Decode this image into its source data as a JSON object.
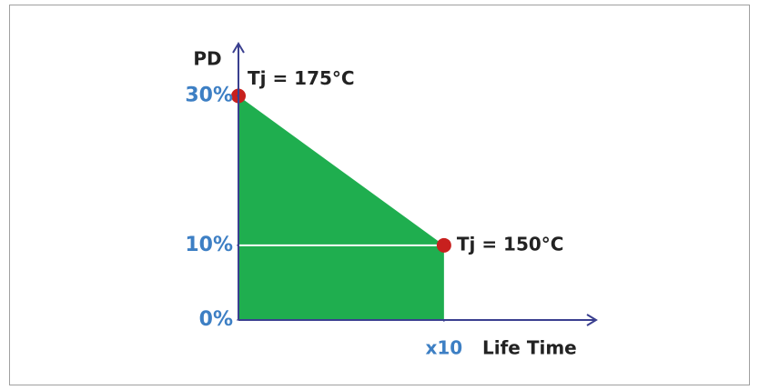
{
  "chart_data": {
    "type": "area",
    "x_label": "Life Time",
    "y_label": "PD",
    "x": [
      0,
      10
    ],
    "series": [
      {
        "color": "#1fae4f",
        "point_color": "#c8201e",
        "values": [
          30,
          10
        ]
      }
    ],
    "annotations": [
      "Tj = 175°C",
      "Tj = 150°C"
    ],
    "xlim": [
      0,
      17.4
    ],
    "xticks": [
      {
        "value": 10,
        "label": "x10"
      }
    ],
    "ylim": [
      0,
      37
    ],
    "yticks": [
      {
        "value": 0,
        "label": "0%"
      },
      {
        "value": 10,
        "label": "10%"
      },
      {
        "value": 30,
        "label": "30%"
      }
    ],
    "tick_color": "#3d7fc4"
  }
}
